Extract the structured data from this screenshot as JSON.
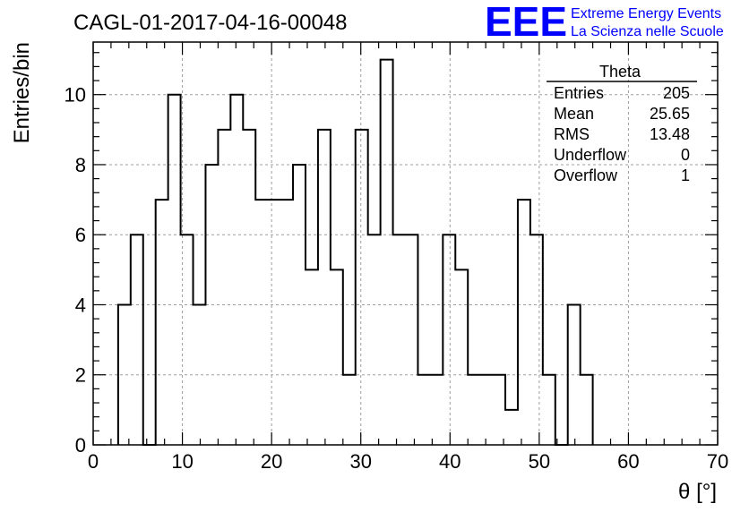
{
  "chart_data": {
    "type": "bar",
    "title": "CAGL-01-2017-04-16-00048",
    "xlabel": "θ [°]",
    "ylabel": "Entries/bin",
    "xlim": [
      0,
      70
    ],
    "ylim": [
      0,
      11.5
    ],
    "x_ticks": [
      "0",
      "10",
      "20",
      "30",
      "40",
      "50",
      "60",
      "70"
    ],
    "y_ticks": [
      "0",
      "2",
      "4",
      "6",
      "8",
      "10"
    ],
    "grid": true,
    "bin_width": 1.4,
    "bins": [
      {
        "x0": 2.8,
        "x1": 4.2,
        "value": 4
      },
      {
        "x0": 4.2,
        "x1": 5.6,
        "value": 6
      },
      {
        "x0": 5.6,
        "x1": 7.0,
        "value": 0
      },
      {
        "x0": 7.0,
        "x1": 8.4,
        "value": 7
      },
      {
        "x0": 8.4,
        "x1": 9.8,
        "value": 10
      },
      {
        "x0": 9.8,
        "x1": 11.2,
        "value": 6
      },
      {
        "x0": 11.2,
        "x1": 12.6,
        "value": 4
      },
      {
        "x0": 12.6,
        "x1": 14.0,
        "value": 8
      },
      {
        "x0": 14.0,
        "x1": 15.4,
        "value": 9
      },
      {
        "x0": 15.4,
        "x1": 16.8,
        "value": 10
      },
      {
        "x0": 16.8,
        "x1": 18.2,
        "value": 9
      },
      {
        "x0": 18.2,
        "x1": 19.6,
        "value": 7
      },
      {
        "x0": 19.6,
        "x1": 21.0,
        "value": 7
      },
      {
        "x0": 21.0,
        "x1": 22.4,
        "value": 7
      },
      {
        "x0": 22.4,
        "x1": 23.8,
        "value": 8
      },
      {
        "x0": 23.8,
        "x1": 25.2,
        "value": 5
      },
      {
        "x0": 25.2,
        "x1": 26.6,
        "value": 9
      },
      {
        "x0": 26.6,
        "x1": 28.0,
        "value": 5
      },
      {
        "x0": 28.0,
        "x1": 29.4,
        "value": 2
      },
      {
        "x0": 29.4,
        "x1": 30.8,
        "value": 9
      },
      {
        "x0": 30.8,
        "x1": 32.2,
        "value": 6
      },
      {
        "x0": 32.2,
        "x1": 33.6,
        "value": 11
      },
      {
        "x0": 33.6,
        "x1": 35.0,
        "value": 6
      },
      {
        "x0": 35.0,
        "x1": 36.4,
        "value": 6
      },
      {
        "x0": 36.4,
        "x1": 37.8,
        "value": 2
      },
      {
        "x0": 37.8,
        "x1": 39.2,
        "value": 2
      },
      {
        "x0": 39.2,
        "x1": 40.6,
        "value": 6
      },
      {
        "x0": 40.6,
        "x1": 42.0,
        "value": 5
      },
      {
        "x0": 42.0,
        "x1": 43.4,
        "value": 2
      },
      {
        "x0": 43.4,
        "x1": 44.8,
        "value": 2
      },
      {
        "x0": 44.8,
        "x1": 46.2,
        "value": 2
      },
      {
        "x0": 46.2,
        "x1": 47.6,
        "value": 1
      },
      {
        "x0": 47.6,
        "x1": 49.0,
        "value": 7
      },
      {
        "x0": 49.0,
        "x1": 50.4,
        "value": 6
      },
      {
        "x0": 50.4,
        "x1": 51.8,
        "value": 2
      },
      {
        "x0": 51.8,
        "x1": 53.2,
        "value": 0
      },
      {
        "x0": 53.2,
        "x1": 54.6,
        "value": 4
      },
      {
        "x0": 54.6,
        "x1": 56.0,
        "value": 2
      }
    ],
    "stats_box": {
      "title": "Theta",
      "rows": [
        {
          "label": "Entries",
          "value": "205"
        },
        {
          "label": "Mean",
          "value": "25.65"
        },
        {
          "label": "RMS",
          "value": "13.48"
        },
        {
          "label": "Underflow",
          "value": "0"
        },
        {
          "label": "Overflow",
          "value": "1"
        }
      ]
    }
  },
  "logo": {
    "letters": "EEE",
    "line1": "Extreme Energy Events",
    "line2": "La Scienza nelle Scuole",
    "color": "#0000ff"
  },
  "colors": {
    "line": "#000000",
    "grid": "#9e9e9e",
    "background": "#ffffff"
  }
}
